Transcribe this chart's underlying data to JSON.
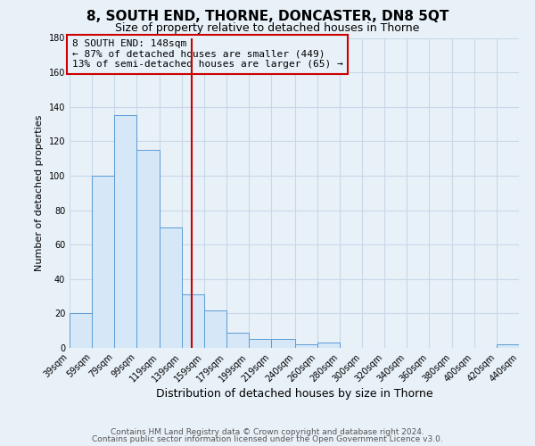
{
  "title": "8, SOUTH END, THORNE, DONCASTER, DN8 5QT",
  "subtitle": "Size of property relative to detached houses in Thorne",
  "xlabel": "Distribution of detached houses by size in Thorne",
  "ylabel": "Number of detached properties",
  "footnote1": "Contains HM Land Registry data © Crown copyright and database right 2024.",
  "footnote2": "Contains public sector information licensed under the Open Government Licence v3.0.",
  "bin_edges": [
    39,
    59,
    79,
    99,
    119,
    139,
    159,
    179,
    199,
    219,
    240,
    260,
    280,
    300,
    320,
    340,
    360,
    380,
    400,
    420,
    440
  ],
  "bin_counts": [
    20,
    100,
    135,
    115,
    70,
    31,
    22,
    9,
    5,
    5,
    2,
    3,
    0,
    0,
    0,
    0,
    0,
    0,
    0,
    2
  ],
  "bar_facecolor": "#d6e8f7",
  "bar_edgecolor": "#5b9bd5",
  "grid_color": "#c8d8e8",
  "background_color": "#e8f1f8",
  "property_line_x": 148,
  "property_label": "8 SOUTH END: 148sqm",
  "pct_smaller": 87,
  "count_smaller": 449,
  "pct_larger_semi": 13,
  "count_larger_semi": 65,
  "annotation_box_edgecolor": "#cc0000",
  "vline_color": "#cc0000",
  "ylim": [
    0,
    180
  ],
  "yticks": [
    0,
    20,
    40,
    60,
    80,
    100,
    120,
    140,
    160,
    180
  ],
  "title_fontsize": 11,
  "subtitle_fontsize": 9,
  "xlabel_fontsize": 9,
  "ylabel_fontsize": 8,
  "tick_fontsize": 7,
  "annotation_fontsize": 8,
  "footnote_fontsize": 6.5
}
